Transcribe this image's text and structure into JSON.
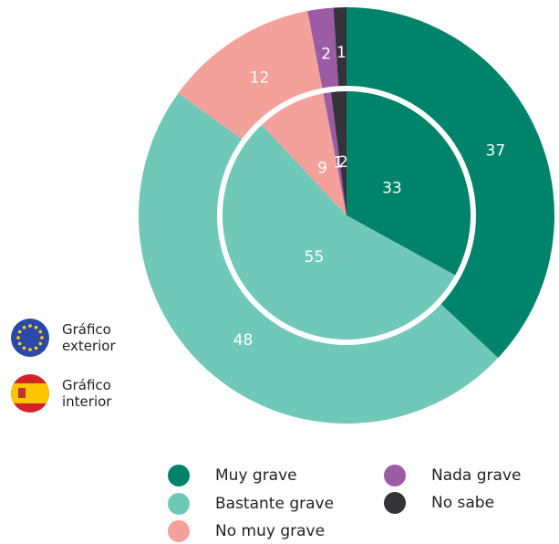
{
  "chart_data": {
    "type": "nested_pie",
    "categories": [
      "Muy grave",
      "Bastante grave",
      "No muy grave",
      "Nada grave",
      "No sabe"
    ],
    "colors": [
      "#00836b",
      "#6fc8b8",
      "#f4a09b",
      "#9b5ba5",
      "#333338"
    ],
    "series": [
      {
        "name": "Gráfico exterior",
        "values": [
          37,
          48,
          12,
          2,
          1
        ]
      },
      {
        "name": "Gráfico interior",
        "values": [
          33,
          55,
          9,
          1,
          2
        ]
      }
    ]
  }
}
